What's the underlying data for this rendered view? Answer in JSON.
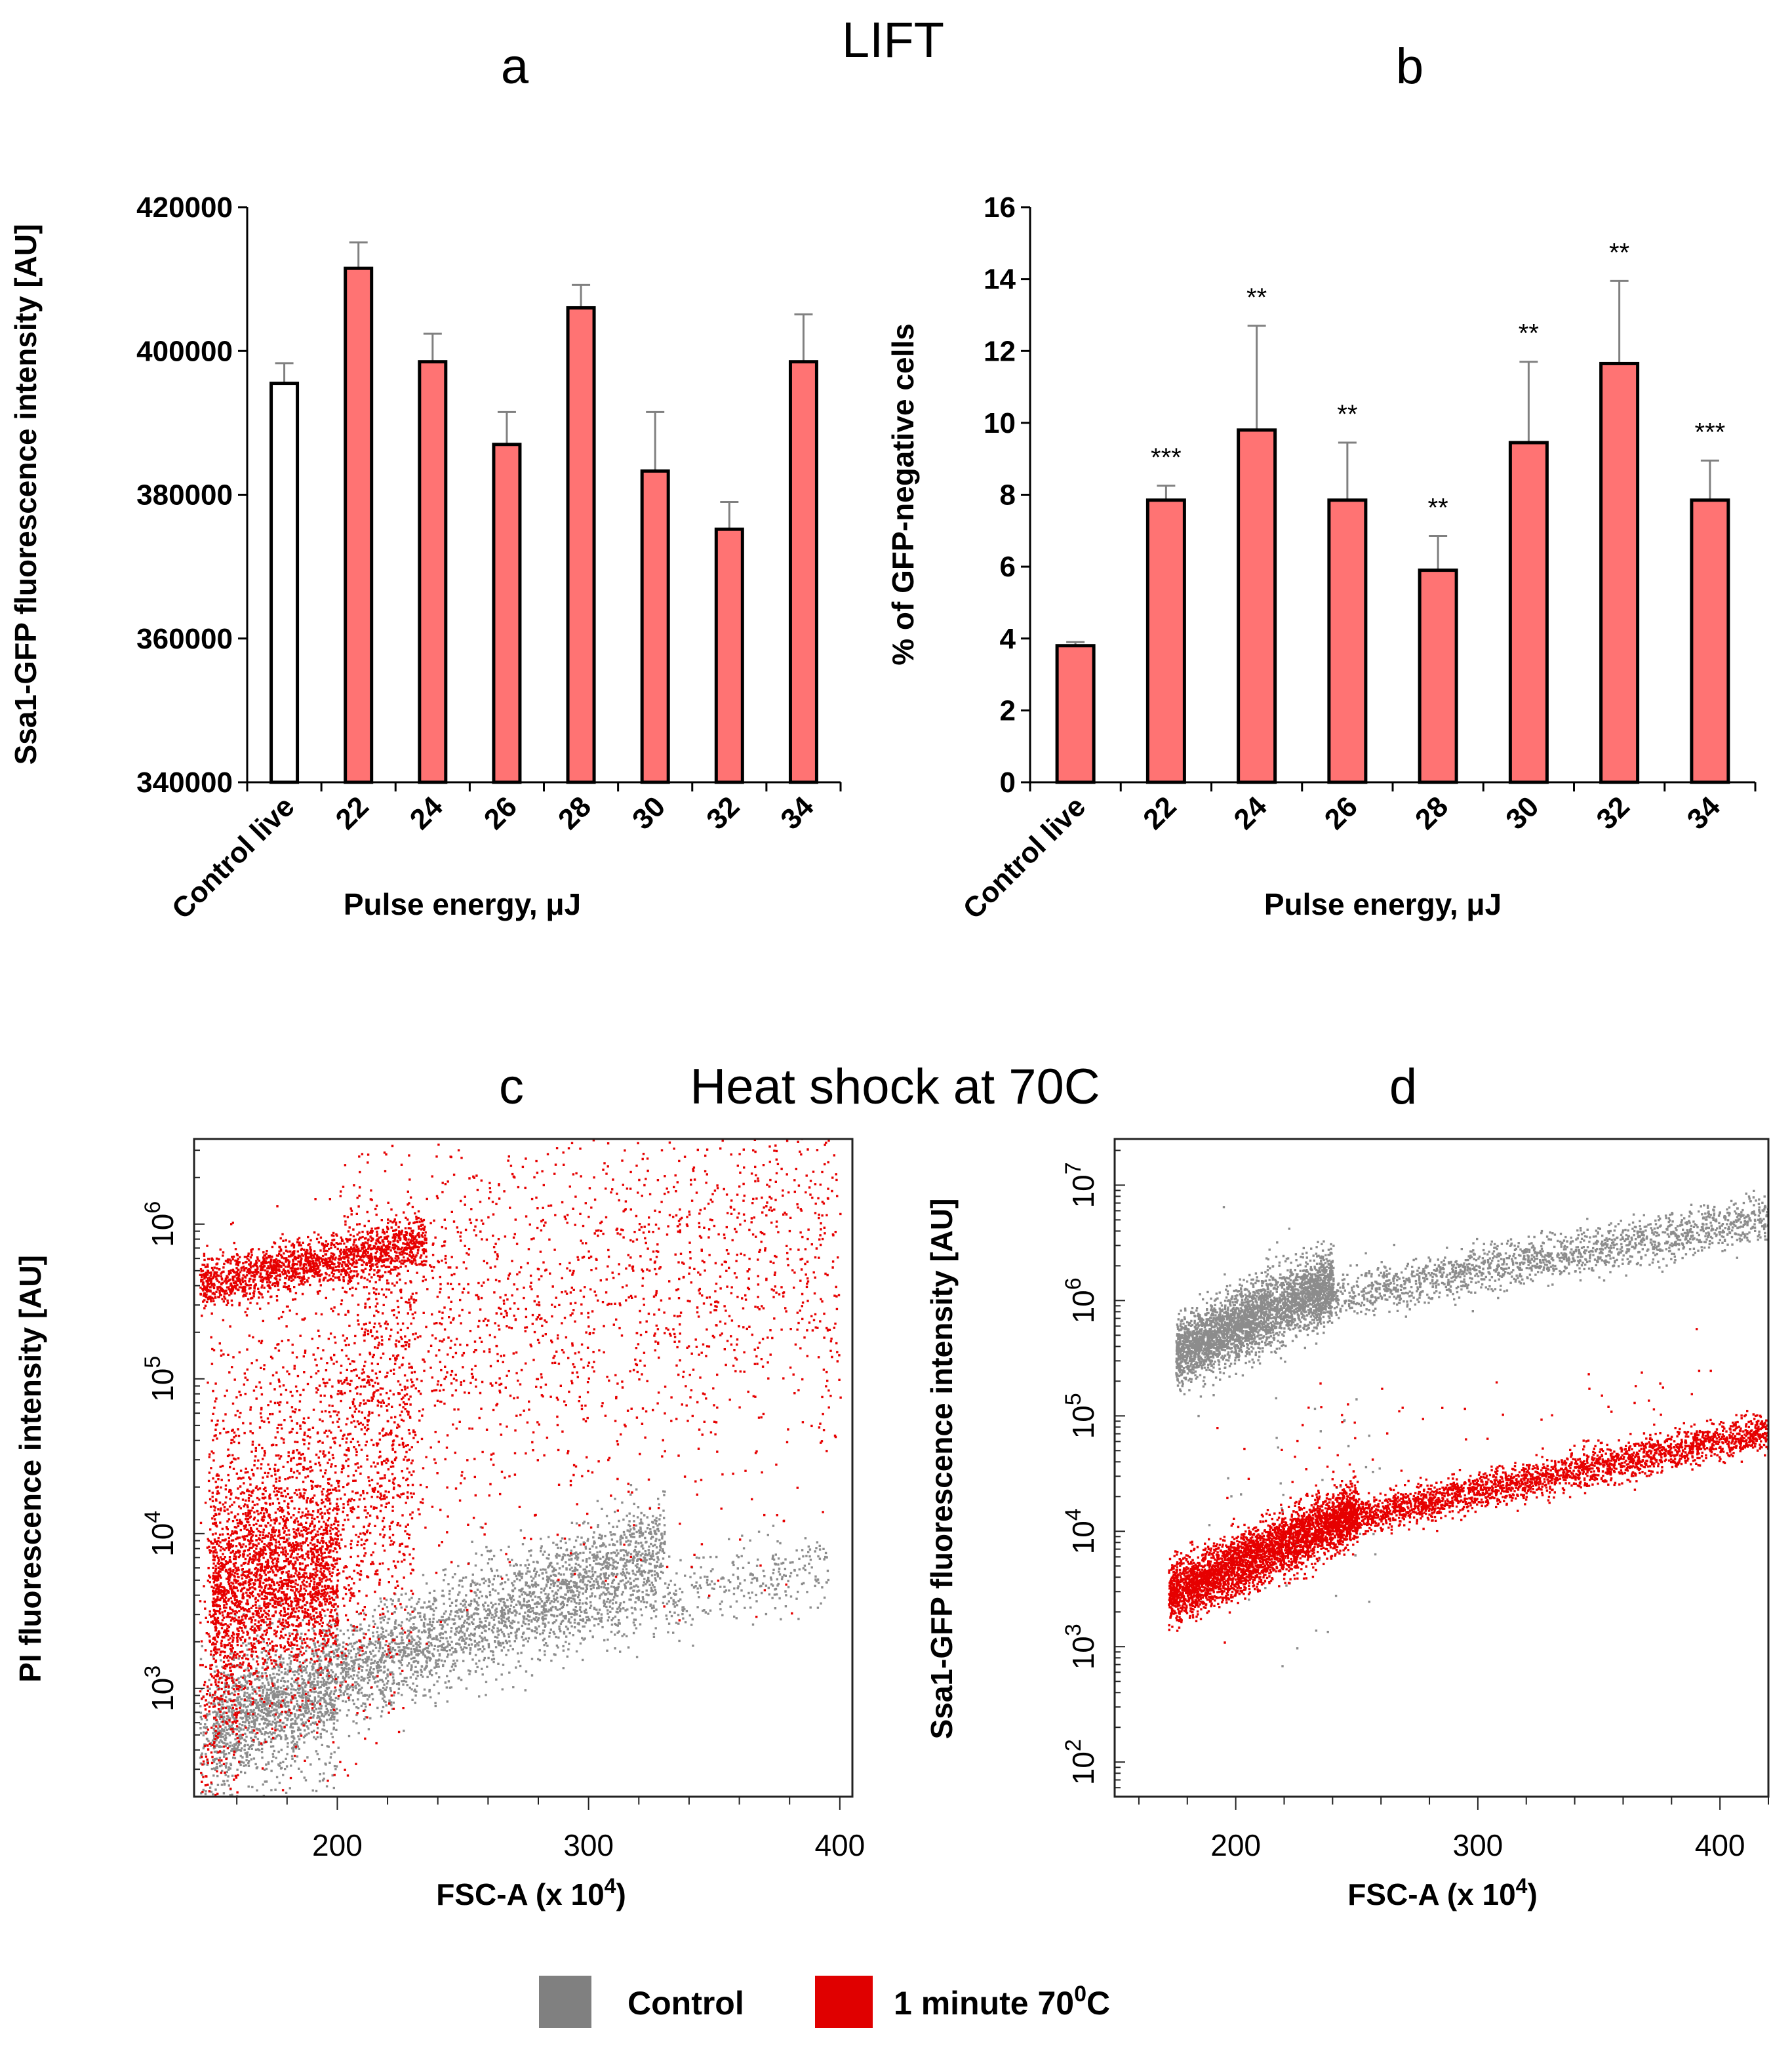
{
  "titles": {
    "lift": "LIFT",
    "heat_shock": "Heat shock at 70C"
  },
  "legend": {
    "items": [
      {
        "label": "Control",
        "color": "#808080"
      },
      {
        "label": "1 minute 70",
        "superscript": "0",
        "suffix": "C",
        "color": "#e00000"
      }
    ]
  },
  "colors": {
    "bar_fill": "#ff7373",
    "control_fill": "#ffffff",
    "control_points": "#8c8c8c",
    "heat_points": "#e60000"
  },
  "chart_data": [
    {
      "panel": "a",
      "type": "bar",
      "xlabel": "Pulse energy, μJ",
      "ylabel": "Ssa1-GFP  fluorescence intensity [AU]",
      "ylim": [
        340000,
        420000
      ],
      "yticks": [
        "340000",
        "360000",
        "380000",
        "400000",
        "420000"
      ],
      "categories": [
        "Control live",
        "22",
        "24",
        "26",
        "28",
        "30",
        "32",
        "34"
      ],
      "values": [
        395500,
        411500,
        398500,
        387000,
        406000,
        383300,
        375200,
        398500
      ],
      "errors": [
        2800,
        3600,
        3900,
        4500,
        3200,
        8200,
        3800,
        6600
      ],
      "fills": [
        "control",
        "bar",
        "bar",
        "bar",
        "bar",
        "bar",
        "bar",
        "bar"
      ]
    },
    {
      "panel": "b",
      "type": "bar",
      "xlabel": "Pulse energy, μJ",
      "ylabel": "% of GFP-negative cells",
      "ylim": [
        0,
        16
      ],
      "yticks": [
        "0",
        "2",
        "4",
        "6",
        "8",
        "10",
        "12",
        "14",
        "16"
      ],
      "categories": [
        "Control live",
        "22",
        "24",
        "26",
        "28",
        "30",
        "32",
        "34"
      ],
      "values": [
        3.8,
        7.85,
        9.8,
        7.85,
        5.9,
        9.45,
        11.65,
        7.85
      ],
      "errors": [
        0.1,
        0.4,
        2.9,
        1.6,
        0.95,
        2.25,
        2.3,
        1.1
      ],
      "annotations": [
        "",
        "***",
        "**",
        "**",
        "**",
        "**",
        "**",
        "***"
      ]
    },
    {
      "panel": "c",
      "type": "scatter",
      "xlabel": "FSC-A  (x 10",
      "xlabel_sup": "4",
      "xlabel_suffix": ")",
      "ylabel": "PI fluorescence intensity [AU]",
      "xlim": [
        143,
        405
      ],
      "xticks": [
        "200",
        "300",
        "400"
      ],
      "ylog": true,
      "ylim_log10": [
        2.3,
        6.55
      ],
      "yticks": [
        {
          "base": "10",
          "exp": "3"
        },
        {
          "base": "10",
          "exp": "4"
        },
        {
          "base": "10",
          "exp": "5"
        },
        {
          "base": "10",
          "exp": "6"
        }
      ],
      "series": [
        {
          "name": "Control",
          "color_key": "control_points",
          "clusters": [
            {
              "n": 3400,
              "x": [
                150,
                330
              ],
              "y_log_at_x0": 2.75,
              "y_log_slope": 0.0065,
              "y_log_sd": 0.17
            },
            {
              "n": 700,
              "x": [
                145,
                200
              ],
              "y_log_at_x0": 2.7,
              "y_log_slope": 0.004,
              "y_log_sd": 0.3
            },
            {
              "n": 450,
              "x": [
                280,
                395
              ],
              "y_log_at_x0": 3.4,
              "y_log_slope": 0.0035,
              "y_log_sd": 0.12
            }
          ]
        },
        {
          "name": "1 minute 70C",
          "color_key": "heat_points",
          "clusters": [
            {
              "n": 1700,
              "x": [
                145,
                235
              ],
              "y_log_at_x0": 5.62,
              "y_log_slope": 0.003,
              "y_log_sd": 0.08
            },
            {
              "n": 1900,
              "x": [
                150,
                200
              ],
              "y_log_at_x0": 3.6,
              "y_log_slope": 0.004,
              "y_log_sd": 0.28
            },
            {
              "n": 1900,
              "x": [
                148,
                230
              ],
              "y_log_at_x0": 3.9,
              "y_log_slope": 0.008,
              "y_log_sd": 0.7
            },
            {
              "n": 1500,
              "x": [
                200,
                400
              ],
              "y_log_at_x0": 5.4,
              "y_log_slope": 0.003,
              "y_log_sd": 0.55
            },
            {
              "n": 400,
              "x": [
                210,
                400
              ],
              "y_log_at_x0": 4.6,
              "y_log_slope": 0.002,
              "y_log_sd": 0.6
            },
            {
              "n": 250,
              "x": [
                145,
                160
              ],
              "y_log_at_x0": 3.0,
              "y_log_slope": 0.0,
              "y_log_sd": 0.5
            }
          ]
        }
      ]
    },
    {
      "panel": "d",
      "type": "scatter",
      "xlabel": "FSC-A  (x 10",
      "xlabel_sup": "4",
      "xlabel_suffix": ")",
      "ylabel": "Ssa1-GFP  fluorescence intensity [AU]",
      "xlim": [
        150,
        420
      ],
      "xticks": [
        "200",
        "300",
        "400"
      ],
      "ylog": true,
      "ylim_log10": [
        1.7,
        7.4
      ],
      "yticks": [
        {
          "base": "10",
          "exp": "2"
        },
        {
          "base": "10",
          "exp": "3"
        },
        {
          "base": "10",
          "exp": "4"
        },
        {
          "base": "10",
          "exp": "5"
        },
        {
          "base": "10",
          "exp": "6"
        },
        {
          "base": "10",
          "exp": "7"
        }
      ],
      "series": [
        {
          "name": "Control",
          "color_key": "control_points",
          "clusters": [
            {
              "n": 3200,
              "x": [
                175,
                240
              ],
              "y_log_at_x0": 5.55,
              "y_log_slope": 0.0095,
              "y_log_sd": 0.15
            },
            {
              "n": 1800,
              "x": [
                230,
                420
              ],
              "y_log_at_x0": 6.0,
              "y_log_slope": 0.0038,
              "y_log_sd": 0.1
            },
            {
              "n": 60,
              "x": [
                178,
                260
              ],
              "y_log_at_x0": 4.5,
              "y_log_slope": 0.0,
              "y_log_sd": 0.9
            }
          ]
        },
        {
          "name": "1 minute 70C",
          "color_key": "heat_points",
          "clusters": [
            {
              "n": 3600,
              "x": [
                172,
                250
              ],
              "y_log_at_x0": 3.45,
              "y_log_slope": 0.0095,
              "y_log_sd": 0.13
            },
            {
              "n": 2600,
              "x": [
                240,
                420
              ],
              "y_log_at_x0": 4.1,
              "y_log_slope": 0.0043,
              "y_log_sd": 0.08
            },
            {
              "n": 60,
              "x": [
                180,
                400
              ],
              "y_log_at_x0": 4.6,
              "y_log_slope": 0.003,
              "y_log_sd": 0.35
            }
          ]
        }
      ]
    }
  ]
}
